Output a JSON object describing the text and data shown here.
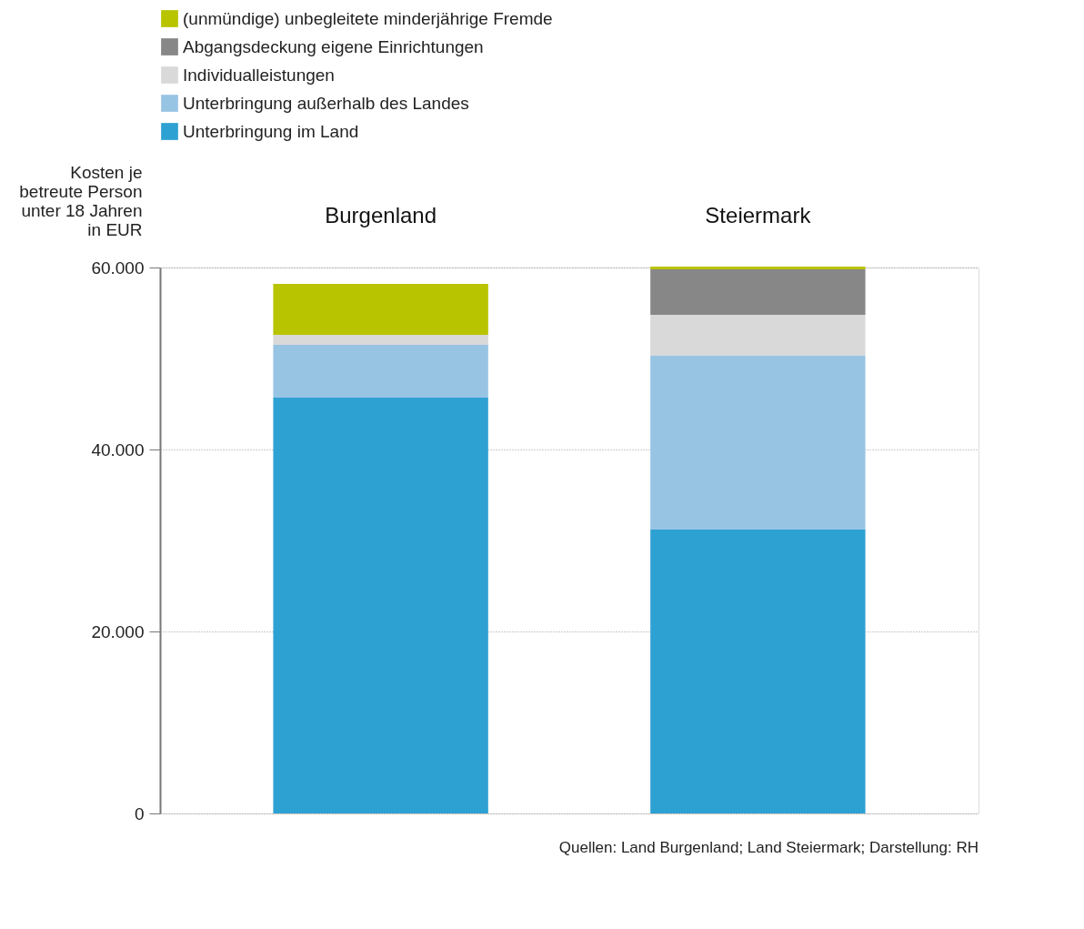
{
  "chart_data": {
    "type": "bar",
    "stacked": true,
    "ylabel": "Kosten je\nbetreute Person\nunter 18 Jahren\nin EUR",
    "categories": [
      "Burgenland",
      "Steiermark"
    ],
    "series": [
      {
        "name": "Unterbringung im Land",
        "color": "#2ea1d3",
        "values": [
          45700,
          31200
        ]
      },
      {
        "name": "Unterbringung außerhalb des Landes",
        "color": "#98c4e4",
        "values": [
          5800,
          19100
        ]
      },
      {
        "name": "Individualleistungen",
        "color": "#d9d9d9",
        "values": [
          1100,
          4500
        ]
      },
      {
        "name": "Abgangsdeckung eigene Einrichtungen",
        "color": "#878787",
        "values": [
          0,
          5000
        ]
      },
      {
        "name": "(unmündige) unbegleitete minderjährige Fremde",
        "color": "#b9c400",
        "values": [
          5600,
          300
        ]
      }
    ],
    "ylim": [
      0,
      60000
    ],
    "yticks": [
      0,
      {
        "value": 20000,
        "label": "20.000"
      },
      {
        "value": 40000,
        "label": "40.000"
      },
      {
        "value": 60000,
        "label": "60.000"
      }
    ],
    "grid": "y",
    "legend": "top left",
    "annotations": [
      "Quellen: Land Burgenland; Land Steiermark; Darstellung: RH"
    ]
  }
}
